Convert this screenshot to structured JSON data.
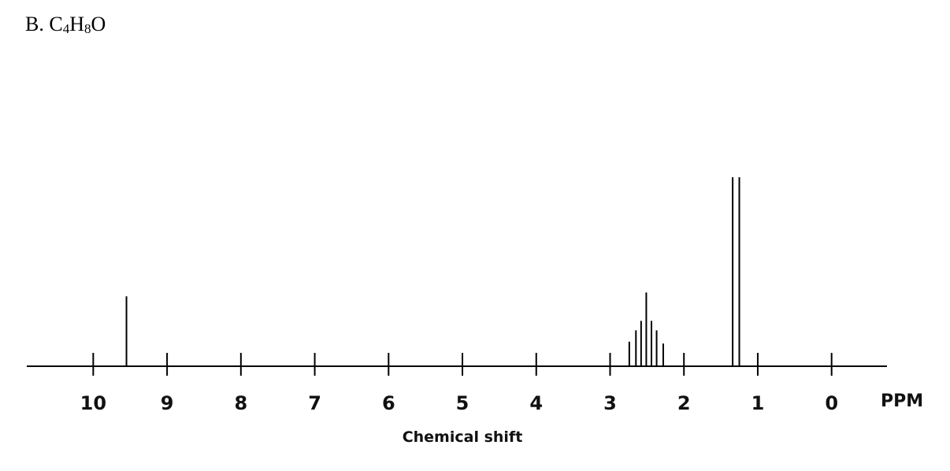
{
  "question": {
    "letter": "B.",
    "formula": [
      {
        "text": "C",
        "sub": false
      },
      {
        "text": "4",
        "sub": true
      },
      {
        "text": "H",
        "sub": false
      },
      {
        "text": "8",
        "sub": true
      },
      {
        "text": "O",
        "sub": false
      }
    ]
  },
  "chart_data": {
    "type": "nmr-stick-spectrum",
    "xlabel": "Chemical shift",
    "unit_label": "PPM",
    "x_reversed": true,
    "xlim": [
      10.9,
      -0.75
    ],
    "ticks": [
      "10",
      "9",
      "8",
      "7",
      "6",
      "5",
      "4",
      "3",
      "2",
      "1",
      "0"
    ],
    "colors": {
      "line": "#000000",
      "text": "#111111"
    },
    "peaks": [
      {
        "name": "singlet",
        "lines": [
          {
            "ppm": 9.55,
            "intensity": 0.37
          }
        ]
      },
      {
        "name": "multiplet",
        "lines": [
          {
            "ppm": 2.74,
            "intensity": 0.13
          },
          {
            "ppm": 2.65,
            "intensity": 0.19
          },
          {
            "ppm": 2.58,
            "intensity": 0.24
          },
          {
            "ppm": 2.51,
            "intensity": 0.39
          },
          {
            "ppm": 2.44,
            "intensity": 0.24
          },
          {
            "ppm": 2.37,
            "intensity": 0.19
          },
          {
            "ppm": 2.28,
            "intensity": 0.12
          }
        ]
      },
      {
        "name": "doublet",
        "lines": [
          {
            "ppm": 1.34,
            "intensity": 1.0
          },
          {
            "ppm": 1.25,
            "intensity": 1.0
          }
        ]
      }
    ]
  }
}
